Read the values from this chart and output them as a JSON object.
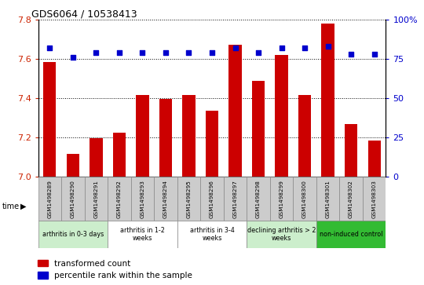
{
  "title": "GDS6064 / 10538413",
  "samples": [
    "GSM1498289",
    "GSM1498290",
    "GSM1498291",
    "GSM1498292",
    "GSM1498293",
    "GSM1498294",
    "GSM1498295",
    "GSM1498296",
    "GSM1498297",
    "GSM1498298",
    "GSM1498299",
    "GSM1498300",
    "GSM1498301",
    "GSM1498302",
    "GSM1498303"
  ],
  "bar_values": [
    7.585,
    7.115,
    7.195,
    7.225,
    7.415,
    7.395,
    7.415,
    7.335,
    7.675,
    7.49,
    7.62,
    7.415,
    7.78,
    7.27,
    7.185
  ],
  "dot_values": [
    82,
    76,
    79,
    79,
    79,
    79,
    79,
    79,
    82,
    79,
    82,
    82,
    83,
    78,
    78
  ],
  "bar_color": "#cc0000",
  "dot_color": "#0000cc",
  "ylim_left": [
    7.0,
    7.8
  ],
  "ylim_right": [
    0,
    100
  ],
  "yticks_left": [
    7.0,
    7.2,
    7.4,
    7.6,
    7.8
  ],
  "yticks_right": [
    0,
    25,
    50,
    75,
    100
  ],
  "ytick_labels_right": [
    "0",
    "25",
    "50",
    "75",
    "100%"
  ],
  "groups": [
    {
      "label": "arthritis in 0-3 days",
      "start": 0,
      "end": 3,
      "color": "#cceecc"
    },
    {
      "label": "arthritis in 1-2\nweeks",
      "start": 3,
      "end": 6,
      "color": "#ffffff"
    },
    {
      "label": "arthritis in 3-4\nweeks",
      "start": 6,
      "end": 9,
      "color": "#ffffff"
    },
    {
      "label": "declining arthritis > 2\nweeks",
      "start": 9,
      "end": 12,
      "color": "#cceecc"
    },
    {
      "label": "non-induced control",
      "start": 12,
      "end": 15,
      "color": "#33bb33"
    }
  ],
  "legend_bar_label": "transformed count",
  "legend_dot_label": "percentile rank within the sample",
  "tick_color_left": "#cc2200",
  "tick_color_right": "#0000cc",
  "sample_box_color": "#cccccc",
  "time_label": "time"
}
